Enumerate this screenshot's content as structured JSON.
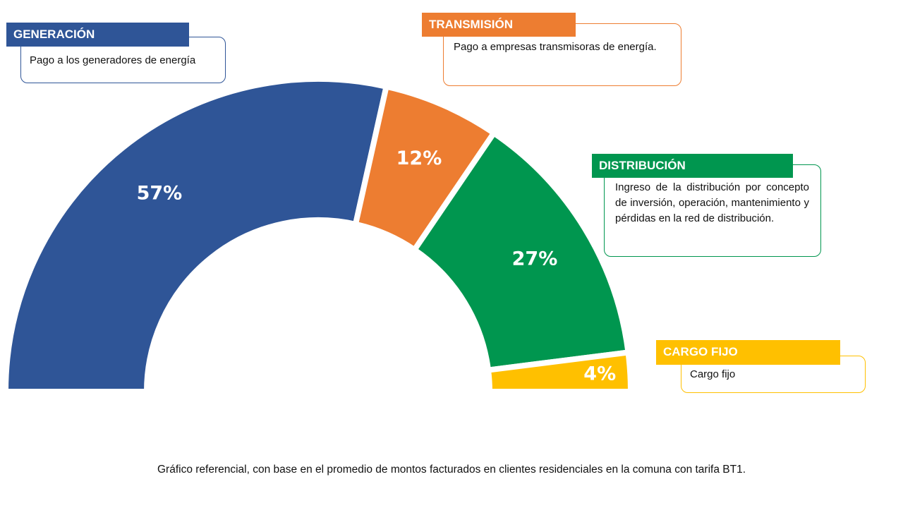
{
  "chart_data": {
    "type": "pie",
    "variant": "semi-donut",
    "categories": [
      "GENERACIÓN",
      "TRANSMISIÓN",
      "DISTRIBUCIÓN",
      "CARGO FIJO"
    ],
    "values": [
      57,
      12,
      27,
      4
    ],
    "data_labels": [
      "57%",
      "12%",
      "27%",
      "4%"
    ],
    "colors": [
      "#2F5597",
      "#ED7D31",
      "#00964F",
      "#FFC000"
    ]
  },
  "legend": {
    "generacion": {
      "title": "GENERACIÓN",
      "description": "Pago a los generadores de energía"
    },
    "transmision": {
      "title": "TRANSMISIÓN",
      "description": "Pago a empresas transmisoras de energía."
    },
    "distribucion": {
      "title": "DISTRIBUCIÓN",
      "description": "Ingreso de la distribución por concepto de inversión, operación, mantenimiento y pérdidas en la red de distribución."
    },
    "cargo_fijo": {
      "title": "CARGO FIJO",
      "description": "Cargo fijo"
    }
  },
  "caption": "Gráfico referencial, con base en el promedio de montos facturados en clientes residenciales en la comuna con tarifa BT1."
}
